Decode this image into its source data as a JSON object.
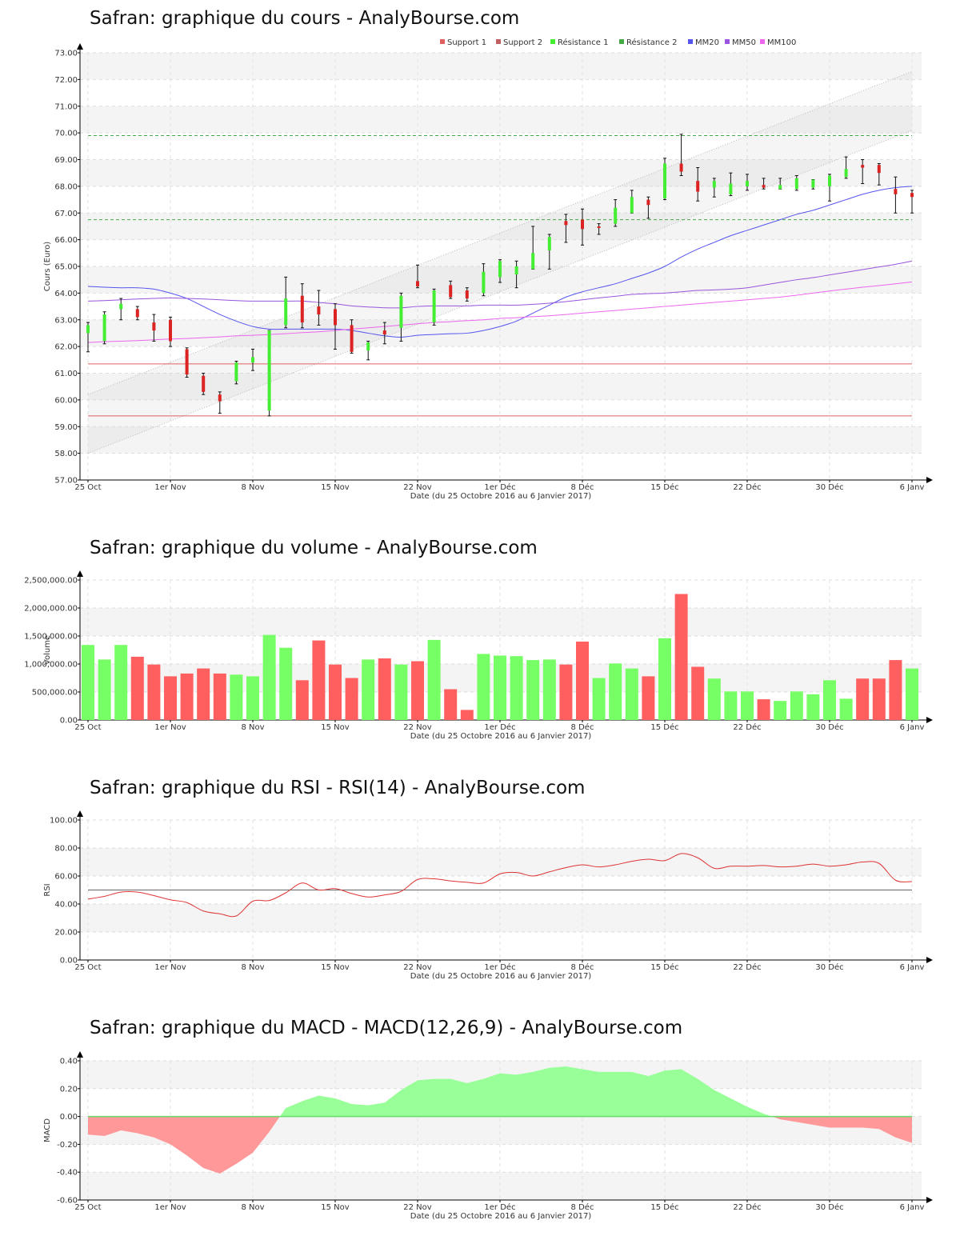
{
  "x_axis": {
    "tick_labels": [
      "25 Oct",
      "1er Nov",
      "8 Nov",
      "15 Nov",
      "22 Nov",
      "1er Déc",
      "8 Déc",
      "15 Déc",
      "22 Déc",
      "30 Déc",
      "6 Janv"
    ],
    "tick_index": [
      0,
      5,
      10,
      15,
      20,
      25,
      30,
      35,
      40,
      45,
      50
    ],
    "label": "Date (du 25 Octobre 2016 au 6 Janvier 2017)"
  },
  "colors": {
    "up": "#44ee33",
    "down": "#dd2222",
    "support": "#e06060",
    "resistance": "#44aa44",
    "mm20": "#5555ee",
    "mm50": "#9955dd",
    "mm100": "#ee66ee",
    "vol_up": "#77ff66",
    "vol_down": "#ff5f5f",
    "macd_pos": "#99ff99",
    "macd_neg": "#ff9999"
  },
  "chart_data": [
    {
      "type": "candlestick",
      "title": "Safran: graphique du cours - AnalyBourse.com",
      "ylabel": "Cours (Euro)",
      "xlabel": "Date (du 25 Octobre 2016 au 6 Janvier 2017)",
      "ylim": [
        57,
        73
      ],
      "yticks": [
        57,
        58,
        59,
        60,
        61,
        62,
        63,
        64,
        65,
        66,
        67,
        68,
        69,
        70,
        71,
        72,
        73
      ],
      "legend": [
        "Support 1",
        "Support 2",
        "Résistance 1",
        "Résistance 2",
        "MM20",
        "MM50",
        "MM100"
      ],
      "legend_position": "top-right",
      "levels": {
        "support_1": 61.35,
        "support_2": 59.4,
        "resistance_1": 69.9,
        "resistance_2": 66.75
      },
      "channel": {
        "lower": [
          58.0,
          70.1
        ],
        "upper": [
          60.2,
          72.3
        ]
      },
      "candles": [
        {
          "o": 62.5,
          "h": 62.9,
          "l": 61.8,
          "c": 62.8
        },
        {
          "o": 62.2,
          "h": 63.3,
          "l": 62.1,
          "c": 63.2
        },
        {
          "o": 63.4,
          "h": 63.8,
          "l": 63.0,
          "c": 63.6
        },
        {
          "o": 63.4,
          "h": 63.5,
          "l": 63.0,
          "c": 63.1
        },
        {
          "o": 62.9,
          "h": 63.2,
          "l": 62.2,
          "c": 62.6
        },
        {
          "o": 63.0,
          "h": 63.1,
          "l": 62.0,
          "c": 62.2
        },
        {
          "o": 61.9,
          "h": 61.95,
          "l": 60.85,
          "c": 60.95
        },
        {
          "o": 60.9,
          "h": 61.0,
          "l": 60.2,
          "c": 60.3
        },
        {
          "o": 60.2,
          "h": 60.3,
          "l": 59.5,
          "c": 59.95
        },
        {
          "o": 60.7,
          "h": 61.45,
          "l": 60.6,
          "c": 61.4
        },
        {
          "o": 61.4,
          "h": 61.9,
          "l": 61.1,
          "c": 61.6
        },
        {
          "o": 59.6,
          "h": 62.6,
          "l": 59.4,
          "c": 62.6
        },
        {
          "o": 62.8,
          "h": 64.6,
          "l": 62.7,
          "c": 63.8
        },
        {
          "o": 63.9,
          "h": 64.35,
          "l": 62.7,
          "c": 62.9
        },
        {
          "o": 63.5,
          "h": 64.1,
          "l": 62.8,
          "c": 63.2
        },
        {
          "o": 63.4,
          "h": 63.6,
          "l": 61.9,
          "c": 62.8
        },
        {
          "o": 62.8,
          "h": 63.0,
          "l": 61.75,
          "c": 61.8
        },
        {
          "o": 61.85,
          "h": 62.2,
          "l": 61.5,
          "c": 62.15
        },
        {
          "o": 62.6,
          "h": 62.9,
          "l": 62.1,
          "c": 62.45
        },
        {
          "o": 62.7,
          "h": 64.0,
          "l": 62.2,
          "c": 63.9
        },
        {
          "o": 64.45,
          "h": 65.05,
          "l": 64.2,
          "c": 64.25
        },
        {
          "o": 62.9,
          "h": 64.15,
          "l": 62.8,
          "c": 64.1
        },
        {
          "o": 64.3,
          "h": 64.45,
          "l": 63.8,
          "c": 63.85
        },
        {
          "o": 64.1,
          "h": 64.2,
          "l": 63.7,
          "c": 63.8
        },
        {
          "o": 64.0,
          "h": 65.1,
          "l": 63.9,
          "c": 64.8
        },
        {
          "o": 64.6,
          "h": 65.25,
          "l": 64.4,
          "c": 65.2
        },
        {
          "o": 64.7,
          "h": 65.2,
          "l": 64.2,
          "c": 65.0
        },
        {
          "o": 64.9,
          "h": 66.5,
          "l": 64.9,
          "c": 65.5
        },
        {
          "o": 65.6,
          "h": 66.2,
          "l": 64.9,
          "c": 66.1
        },
        {
          "o": 66.7,
          "h": 66.95,
          "l": 65.9,
          "c": 66.55
        },
        {
          "o": 66.75,
          "h": 67.15,
          "l": 65.8,
          "c": 66.4
        },
        {
          "o": 66.5,
          "h": 66.6,
          "l": 66.2,
          "c": 66.45
        },
        {
          "o": 66.6,
          "h": 67.5,
          "l": 66.5,
          "c": 67.2
        },
        {
          "o": 67.0,
          "h": 67.85,
          "l": 67.0,
          "c": 67.6
        },
        {
          "o": 67.5,
          "h": 67.6,
          "l": 66.8,
          "c": 67.3
        },
        {
          "o": 67.55,
          "h": 69.05,
          "l": 67.5,
          "c": 68.85
        },
        {
          "o": 68.85,
          "h": 69.95,
          "l": 68.4,
          "c": 68.55
        },
        {
          "o": 68.2,
          "h": 68.7,
          "l": 67.45,
          "c": 67.8
        },
        {
          "o": 67.95,
          "h": 68.3,
          "l": 67.6,
          "c": 68.2
        },
        {
          "o": 67.7,
          "h": 68.5,
          "l": 67.65,
          "c": 68.1
        },
        {
          "o": 68.0,
          "h": 68.45,
          "l": 67.85,
          "c": 68.2
        },
        {
          "o": 68.05,
          "h": 68.3,
          "l": 67.9,
          "c": 67.95
        },
        {
          "o": 67.9,
          "h": 68.3,
          "l": 67.9,
          "c": 68.05
        },
        {
          "o": 67.9,
          "h": 68.4,
          "l": 67.85,
          "c": 68.3
        },
        {
          "o": 67.95,
          "h": 68.25,
          "l": 67.9,
          "c": 68.25
        },
        {
          "o": 68.0,
          "h": 68.45,
          "l": 67.45,
          "c": 68.4
        },
        {
          "o": 68.35,
          "h": 69.1,
          "l": 68.3,
          "c": 68.65
        },
        {
          "o": 68.8,
          "h": 69.0,
          "l": 68.1,
          "c": 68.7
        },
        {
          "o": 68.8,
          "h": 68.85,
          "l": 68.05,
          "c": 68.5
        },
        {
          "o": 67.9,
          "h": 68.35,
          "l": 67.0,
          "c": 67.7
        },
        {
          "o": 67.75,
          "h": 67.85,
          "l": 67.0,
          "c": 67.6
        }
      ],
      "series": [
        {
          "name": "MM20",
          "values": [
            64.25,
            64.22,
            64.2,
            64.2,
            64.15,
            64.0,
            63.8,
            63.5,
            63.2,
            62.95,
            62.75,
            62.65,
            62.65,
            62.65,
            62.65,
            62.65,
            62.6,
            62.5,
            62.4,
            62.35,
            62.42,
            62.45,
            62.48,
            62.5,
            62.6,
            62.75,
            62.95,
            63.25,
            63.55,
            63.85,
            64.05,
            64.2,
            64.35,
            64.55,
            64.75,
            65.0,
            65.35,
            65.65,
            65.9,
            66.15,
            66.35,
            66.55,
            66.75,
            66.95,
            67.1,
            67.3,
            67.5,
            67.7,
            67.85,
            67.95,
            68.0
          ]
        },
        {
          "name": "MM50",
          "values": [
            63.7,
            63.72,
            63.75,
            63.78,
            63.8,
            63.82,
            63.8,
            63.78,
            63.75,
            63.72,
            63.7,
            63.7,
            63.7,
            63.7,
            63.65,
            63.6,
            63.52,
            63.48,
            63.45,
            63.45,
            63.5,
            63.52,
            63.52,
            63.52,
            63.55,
            63.55,
            63.55,
            63.58,
            63.62,
            63.68,
            63.75,
            63.82,
            63.88,
            63.95,
            63.98,
            64.0,
            64.05,
            64.1,
            64.12,
            64.15,
            64.2,
            64.3,
            64.4,
            64.5,
            64.58,
            64.68,
            64.78,
            64.88,
            64.98,
            65.08,
            65.2
          ]
        },
        {
          "name": "MM100",
          "values": [
            62.15,
            62.18,
            62.2,
            62.22,
            62.25,
            62.28,
            62.3,
            62.33,
            62.36,
            62.4,
            62.42,
            62.45,
            62.48,
            62.52,
            62.55,
            62.6,
            62.65,
            62.7,
            62.75,
            62.8,
            62.85,
            62.9,
            62.93,
            62.97,
            63.0,
            63.05,
            63.08,
            63.12,
            63.15,
            63.2,
            63.25,
            63.3,
            63.35,
            63.4,
            63.45,
            63.5,
            63.55,
            63.6,
            63.65,
            63.7,
            63.75,
            63.8,
            63.85,
            63.92,
            64.0,
            64.08,
            64.15,
            64.22,
            64.28,
            64.35,
            64.42
          ]
        }
      ]
    },
    {
      "type": "bar",
      "title": "Safran: graphique du volume - AnalyBourse.com",
      "ylabel": "Volume",
      "xlabel": "Date (du 25 Octobre 2016 au 6 Janvier 2017)",
      "ylim": [
        0,
        2500000
      ],
      "yticks": [
        0,
        500000,
        1000000,
        1500000,
        2000000,
        2500000
      ],
      "ytick_labels": [
        "0.00",
        "500,000.00",
        "1,000,000.00",
        "1,500,000.00",
        "2,000,000.00",
        "2,500,000.00"
      ],
      "values": [
        1340000,
        1080000,
        1340000,
        1130000,
        990000,
        780000,
        830000,
        920000,
        830000,
        810000,
        780000,
        1520000,
        1290000,
        710000,
        1420000,
        990000,
        750000,
        1080000,
        1100000,
        990000,
        1050000,
        1430000,
        550000,
        180000,
        1180000,
        1150000,
        1140000,
        1070000,
        1080000,
        990000,
        1400000,
        750000,
        1010000,
        920000,
        780000,
        1460000,
        2250000,
        950000,
        740000,
        510000,
        510000,
        370000,
        340000,
        510000,
        460000,
        710000,
        380000,
        740000,
        740000,
        1070000,
        920000
      ],
      "direction": [
        "up",
        "up",
        "up",
        "down",
        "down",
        "down",
        "down",
        "down",
        "down",
        "up",
        "up",
        "up",
        "up",
        "down",
        "down",
        "down",
        "down",
        "up",
        "down",
        "up",
        "down",
        "up",
        "down",
        "down",
        "up",
        "up",
        "up",
        "up",
        "up",
        "down",
        "down",
        "up",
        "up",
        "up",
        "down",
        "up",
        "down",
        "down",
        "up",
        "up",
        "up",
        "down",
        "up",
        "up",
        "up",
        "up",
        "up",
        "down",
        "down",
        "down",
        "up"
      ]
    },
    {
      "type": "line",
      "title": "Safran: graphique du RSI - RSI(14) - AnalyBourse.com",
      "ylabel": "RSI",
      "xlabel": "Date (du 25 Octobre 2016 au 6 Janvier 2017)",
      "ylim": [
        0,
        100
      ],
      "yticks": [
        0,
        20,
        40,
        60,
        80,
        100
      ],
      "reference_line": 50,
      "series": [
        {
          "name": "RSI(14)",
          "values": [
            43.5,
            45.5,
            48.5,
            48.5,
            46.0,
            43.0,
            41.0,
            35.0,
            33.0,
            31.5,
            42.0,
            42.5,
            48.0,
            55.0,
            50.0,
            51.0,
            47.5,
            45.0,
            46.5,
            49.0,
            57.5,
            58.0,
            56.5,
            55.5,
            55.0,
            61.5,
            62.5,
            60.0,
            63.0,
            66.0,
            68.0,
            66.5,
            68.0,
            70.5,
            72.0,
            71.0,
            76.0,
            73.0,
            65.5,
            67.0,
            67.0,
            67.5,
            66.5,
            67.0,
            68.5,
            67.0,
            68.0,
            70.0,
            69.0,
            57.0,
            56.0
          ]
        }
      ]
    },
    {
      "type": "area",
      "title": "Safran: graphique du MACD - MACD(12,26,9) - AnalyBourse.com",
      "ylabel": "MACD",
      "xlabel": "Date (du 25 Octobre 2016 au 6 Janvier 2017)",
      "ylim": [
        -0.6,
        0.4
      ],
      "yticks": [
        -0.6,
        -0.4,
        -0.2,
        0,
        0.2,
        0.4
      ],
      "series": [
        {
          "name": "MACD(12,26,9)",
          "values": [
            -0.13,
            -0.14,
            -0.1,
            -0.12,
            -0.15,
            -0.2,
            -0.28,
            -0.37,
            -0.41,
            -0.34,
            -0.26,
            -0.11,
            0.06,
            0.11,
            0.15,
            0.13,
            0.09,
            0.08,
            0.1,
            0.19,
            0.26,
            0.27,
            0.27,
            0.24,
            0.27,
            0.31,
            0.3,
            0.32,
            0.35,
            0.36,
            0.34,
            0.32,
            0.32,
            0.32,
            0.29,
            0.33,
            0.34,
            0.27,
            0.19,
            0.13,
            0.07,
            0.02,
            -0.02,
            -0.04,
            -0.06,
            -0.08,
            -0.08,
            -0.08,
            -0.09,
            -0.15,
            -0.19
          ]
        }
      ]
    }
  ]
}
